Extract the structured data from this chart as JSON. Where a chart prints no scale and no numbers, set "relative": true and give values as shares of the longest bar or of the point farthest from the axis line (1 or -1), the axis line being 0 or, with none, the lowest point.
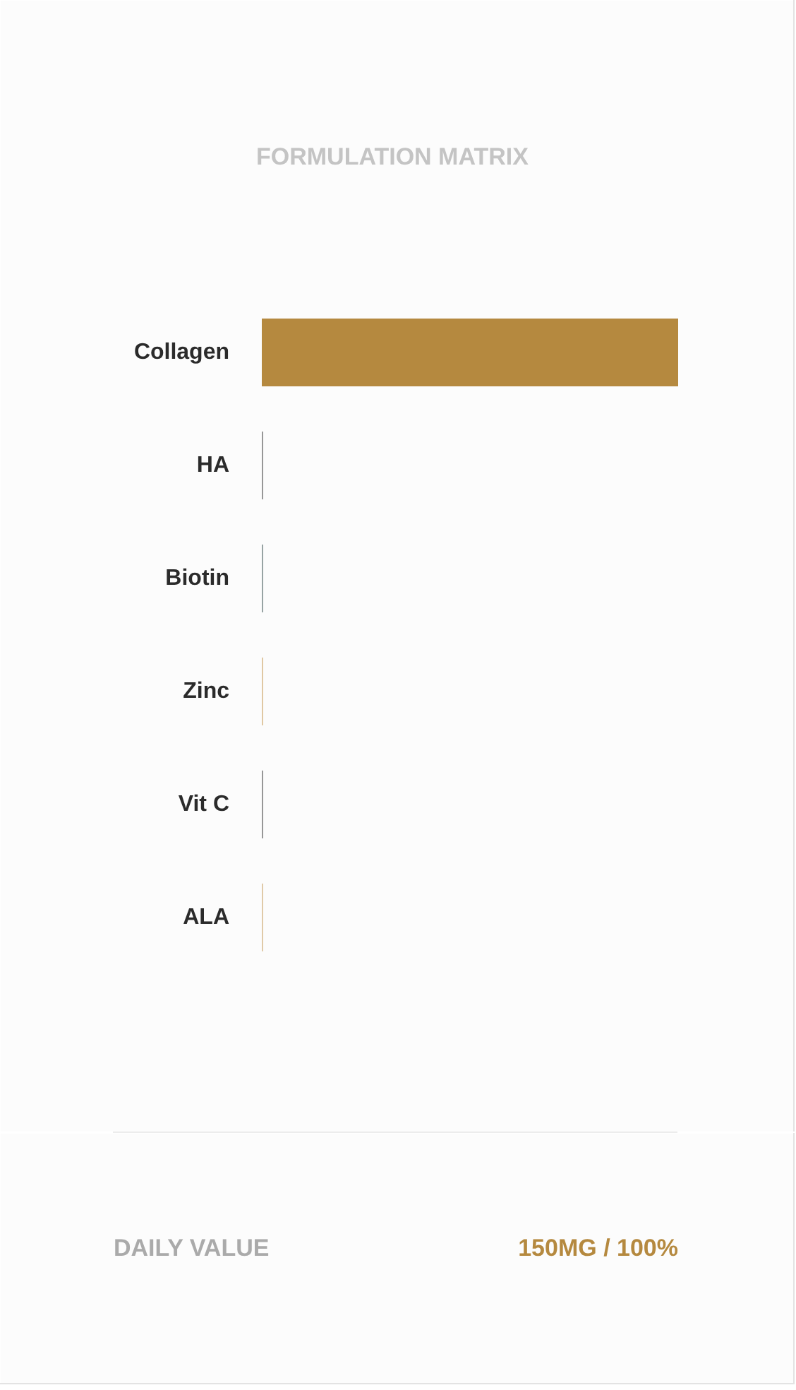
{
  "chart_data": {
    "type": "bar",
    "orientation": "horizontal",
    "relative": true,
    "title": "FORMULATION MATRIX",
    "categories": [
      "Collagen",
      "HA",
      "Biotin",
      "Zinc",
      "Vit C",
      "ALA"
    ],
    "values": [
      1,
      0.003,
      0.003,
      0.003,
      0.003,
      0.003
    ],
    "colors": [
      "#b5893f",
      "#8a8a8a",
      "#8a9898",
      "#dcc197",
      "#8a8a8a",
      "#dcc39d"
    ],
    "annotations": [
      "DAILY VALUE",
      "150MG / 100%"
    ]
  }
}
